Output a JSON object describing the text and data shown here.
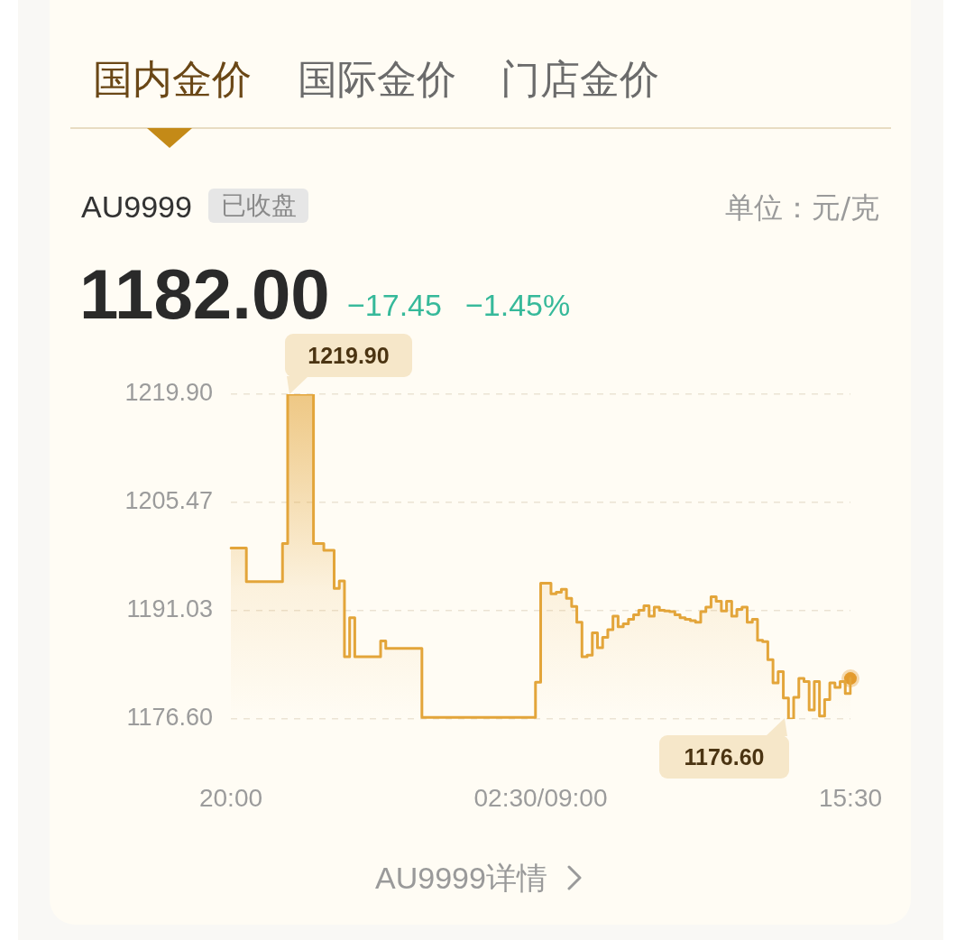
{
  "chart_data": {
    "type": "step",
    "title": "AU9999",
    "categories": [
      "20:00",
      null,
      null,
      null,
      null,
      null,
      null,
      null,
      null,
      null,
      null,
      null,
      null,
      null,
      null,
      null,
      null,
      null,
      null,
      null,
      null,
      null,
      null,
      null,
      null,
      null,
      null,
      null,
      null,
      null,
      null,
      null,
      null,
      null,
      null,
      null,
      null,
      null,
      null,
      null,
      null,
      null,
      null,
      null,
      null,
      null,
      null,
      null,
      null,
      null,
      null,
      null,
      null,
      null,
      null,
      null,
      null,
      null,
      null,
      null,
      "02:30/09:00",
      null,
      null,
      null,
      null,
      null,
      null,
      null,
      null,
      null,
      null,
      null,
      null,
      null,
      null,
      null,
      null,
      null,
      null,
      null,
      null,
      null,
      null,
      null,
      null,
      null,
      null,
      null,
      null,
      null,
      null,
      null,
      null,
      null,
      null,
      null,
      null,
      null,
      null,
      null,
      null,
      null,
      null,
      null,
      null,
      null,
      null,
      null,
      null,
      null,
      null,
      null,
      null,
      null,
      null,
      null,
      null,
      null,
      null,
      null,
      "15:30"
    ],
    "series": [
      {
        "color": "#e3a53a",
        "values": [
          1199.4,
          1199.4,
          1199.4,
          1194.9,
          1194.9,
          1194.9,
          1194.9,
          1194.9,
          1194.9,
          1194.9,
          1200.0,
          1219.9,
          1219.9,
          1219.9,
          1219.9,
          1219.9,
          1200.0,
          1200.0,
          1199.1,
          1199.1,
          1194.0,
          1195.0,
          1184.9,
          1190.1,
          1184.9,
          1184.9,
          1184.9,
          1184.9,
          1184.9,
          1187.0,
          1186.0,
          1186.0,
          1186.0,
          1186.0,
          1186.0,
          1186.0,
          1186.0,
          1176.8,
          1176.8,
          1176.8,
          1176.8,
          1176.8,
          1176.8,
          1176.8,
          1176.8,
          1176.8,
          1176.8,
          1176.8,
          1176.8,
          1176.8,
          1176.8,
          1176.8,
          1176.8,
          1176.8,
          1176.8,
          1176.8,
          1176.8,
          1176.8,
          1176.8,
          1181.5,
          1194.7,
          1194.7,
          1193.3,
          1193.5,
          1193.9,
          1192.7,
          1191.6,
          1189.5,
          1184.9,
          1185.1,
          1188.1,
          1186.1,
          1187.5,
          1188.5,
          1190.3,
          1188.9,
          1189.3,
          1189.9,
          1190.5,
          1191.1,
          1191.7,
          1190.3,
          1191.5,
          1191.1,
          1191.0,
          1190.9,
          1190.5,
          1190.1,
          1189.9,
          1189.7,
          1189.5,
          1190.9,
          1191.5,
          1192.9,
          1192.3,
          1191.0,
          1192.3,
          1190.3,
          1191.2,
          1191.5,
          1189.5,
          1189.9,
          1187.1,
          1186.9,
          1184.5,
          1181.4,
          1182.9,
          1179.4,
          1176.6,
          1179.5,
          1182.0,
          1181.6,
          1177.8,
          1181.6,
          1177.0,
          1179.2,
          1181.4,
          1180.8,
          1181.6,
          1180.0,
          1182.0
        ]
      },
      {
        "type": "scatter",
        "x": [
          "15:30"
        ],
        "values": [
          1182.0
        ],
        "color": "#e39b2d",
        "marker": "circle"
      }
    ],
    "ylim": [
      1176.6,
      1219.9
    ],
    "yticks": [
      {
        "value": 1176.6,
        "label": "1176.60"
      },
      1191.03,
      1205.47,
      {
        "value": 1219.9,
        "label": "1219.90"
      }
    ],
    "grid": "y",
    "legend": false,
    "annotations": [
      "国内金价",
      "国际金价",
      "门店金价",
      "已收盘",
      "单位：元/克",
      "1182.00",
      "−17.45",
      "−1.45%",
      "AU9999详情",
      "1219.90",
      "1176.60"
    ]
  }
}
